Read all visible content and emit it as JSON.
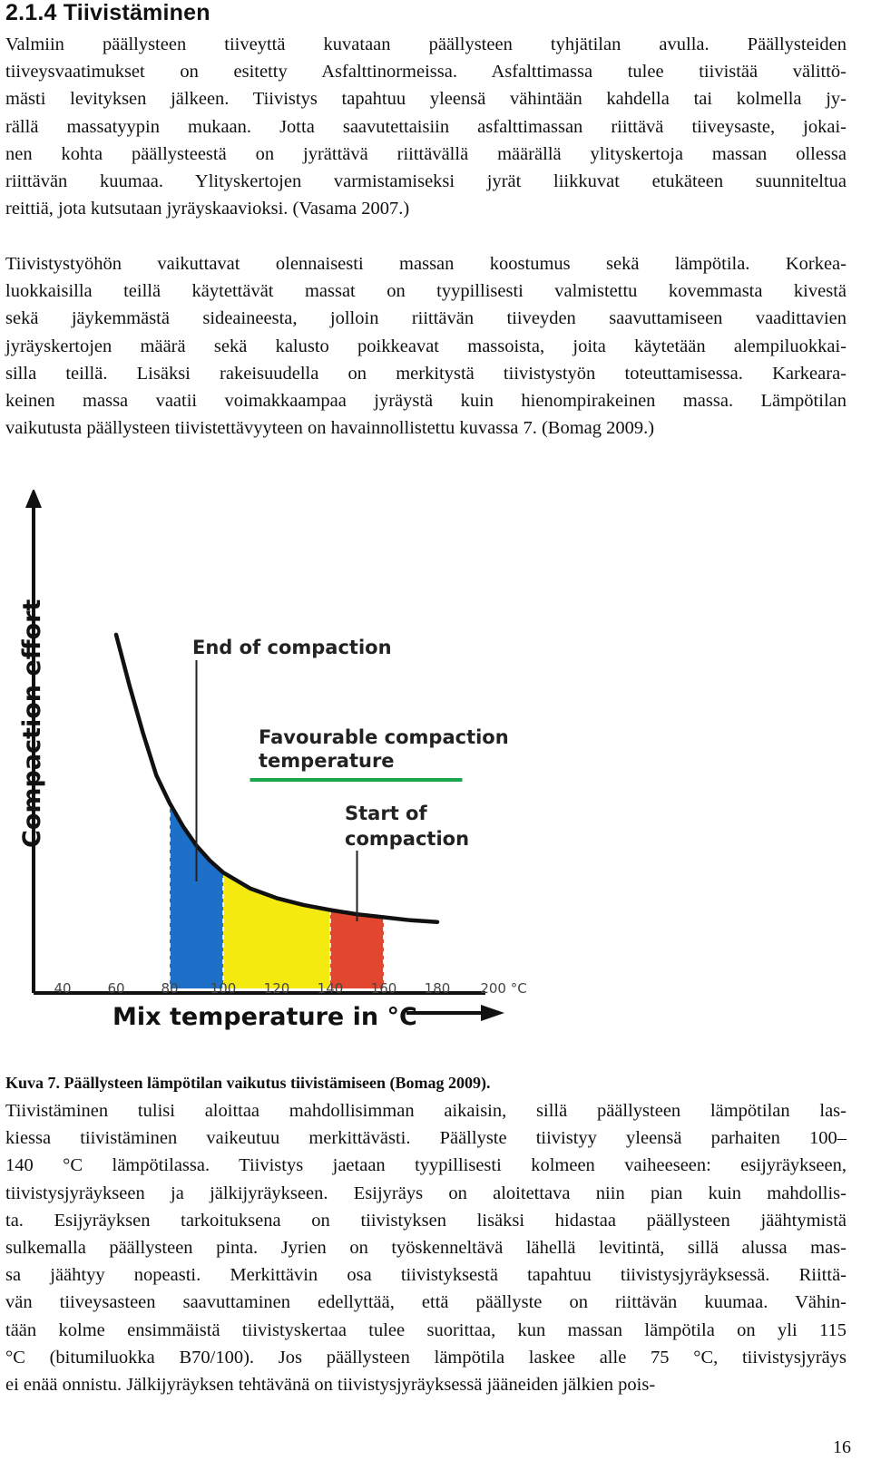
{
  "section": {
    "heading": "2.1.4 Tiivistäminen"
  },
  "paragraphs": [
    {
      "lines": [
        "Valmiin päällysteen tiiveyttä kuvataan päällysteen tyhjätilan avulla. Päällysteiden",
        "tiiveysvaatimukset on esitetty Asfalttinormeissa. Asfalttimassa tulee tiivistää välittö-",
        "mästi levityksen jälkeen. Tiivistys tapahtuu yleensä vähintään kahdella tai kolmella jy-",
        "rällä massatyypin mukaan. Jotta saavutettaisiin asfalttimassan riittävä tiiveysaste, jokai-",
        "nen kohta päällysteestä on jyrättävä riittävällä määrällä ylityskertoja massan ollessa",
        "riittävän kuumaa. Ylityskertojen varmistamiseksi jyrät liikkuvat etukäteen suunniteltua",
        "reittiä, jota kutsutaan jyräyskaavioksi. (Vasama 2007.)"
      ]
    },
    {
      "lines": [
        "Tiivistystyöhön vaikuttavat olennaisesti massan koostumus sekä lämpötila. Korkea-",
        "luokkaisilla teillä käytettävät massat on tyypillisesti valmistettu kovemmasta kivestä",
        "sekä jäykemmästä sideaineesta, jolloin riittävän tiiveyden saavuttamiseen vaadittavien",
        "jyräyskertojen määrä sekä kalusto poikkeavat massoista, joita käytetään alempiluokkai-",
        "silla teillä. Lisäksi rakeisuudella on merkitystä tiivistystyön toteuttamisessa. Karkeara-",
        "keinen massa vaatii voimakkaampaa jyräystä kuin hienompirakeinen massa. Lämpötilan",
        "vaikutusta päällysteen tiivistettävyyteen on havainnollistettu kuvassa 7. (Bomag 2009.)"
      ]
    },
    {
      "lines": [
        "Tiivistäminen tulisi aloittaa mahdollisimman aikaisin, sillä päällysteen lämpötilan las-",
        "kiessa tiivistäminen vaikeutuu merkittävästi. Päällyste tiivistyy yleensä parhaiten 100–",
        "140 °C lämpötilassa.  Tiivistys jaetaan tyypillisesti kolmeen vaiheeseen: esijyräykseen,",
        "tiivistysjyräykseen ja jälkijyräykseen. Esijyräys on aloitettava niin pian kuin mahdollis-",
        "ta. Esijyräyksen tarkoituksena on tiivistyksen lisäksi hidastaa päällysteen jäähtymistä",
        "sulkemalla päällysteen pinta. Jyrien on työskenneltävä lähellä levitintä, sillä alussa mas-",
        "sa jäähtyy nopeasti. Merkittävin osa tiivistyksestä tapahtuu tiivistysjyräyksessä. Riittä-",
        "vän tiiveysasteen saavuttaminen edellyttää, että päällyste on riittävän kuumaa. Vähin-",
        "tään kolme ensimmäistä tiivistyskertaa tulee suorittaa, kun massan lämpötila on yli 115",
        "°C (bitumiluokka B70/100). Jos päällysteen lämpötila laskee alle 75 °C, tiivistysjyräys",
        "ei enää onnistu. Jälkijyräyksen tehtävänä on tiivistysjyräyksessä jääneiden jälkien pois-"
      ]
    }
  ],
  "figure": {
    "caption": "Kuva 7. Päällysteen lämpötilan vaikutus tiivistämiseen (Bomag 2009)."
  },
  "page_number": "16",
  "colors": {
    "blue": "#1e6fc8",
    "yellow": "#f5ea10",
    "red": "#e2462e",
    "green": "#1aa64a",
    "curve": "#111111"
  },
  "chart_data": {
    "type": "area",
    "xlabel": "Mix temperature in °C",
    "ylabel": "Compaction effort",
    "x_ticks": [
      "40",
      "60",
      "80",
      "100",
      "120",
      "140",
      "160",
      "180",
      "200 °C"
    ],
    "x_tick_values": [
      40,
      60,
      80,
      100,
      120,
      140,
      160,
      180,
      200
    ],
    "xlim": [
      40,
      200
    ],
    "curve": {
      "x": [
        60,
        65,
        70,
        75,
        80,
        85,
        90,
        95,
        100,
        110,
        120,
        130,
        140,
        150,
        160,
        170,
        180
      ],
      "y": [
        8.3,
        7.1,
        6.0,
        5.0,
        4.35,
        3.8,
        3.35,
        3.0,
        2.72,
        2.35,
        2.12,
        1.96,
        1.84,
        1.74,
        1.67,
        1.6,
        1.56
      ]
    },
    "regions": [
      {
        "from": 80,
        "to": 100,
        "color": "blue"
      },
      {
        "from": 100,
        "to": 140,
        "color": "yellow"
      },
      {
        "from": 140,
        "to": 160,
        "color": "red"
      }
    ],
    "annotations": [
      {
        "text": [
          "End of compaction"
        ],
        "x": 90
      },
      {
        "text": [
          "Favourable compaction",
          "temperature"
        ],
        "x_range": [
          110,
          190
        ]
      },
      {
        "text": [
          "Start of",
          "compaction"
        ],
        "x": 150
      }
    ]
  }
}
